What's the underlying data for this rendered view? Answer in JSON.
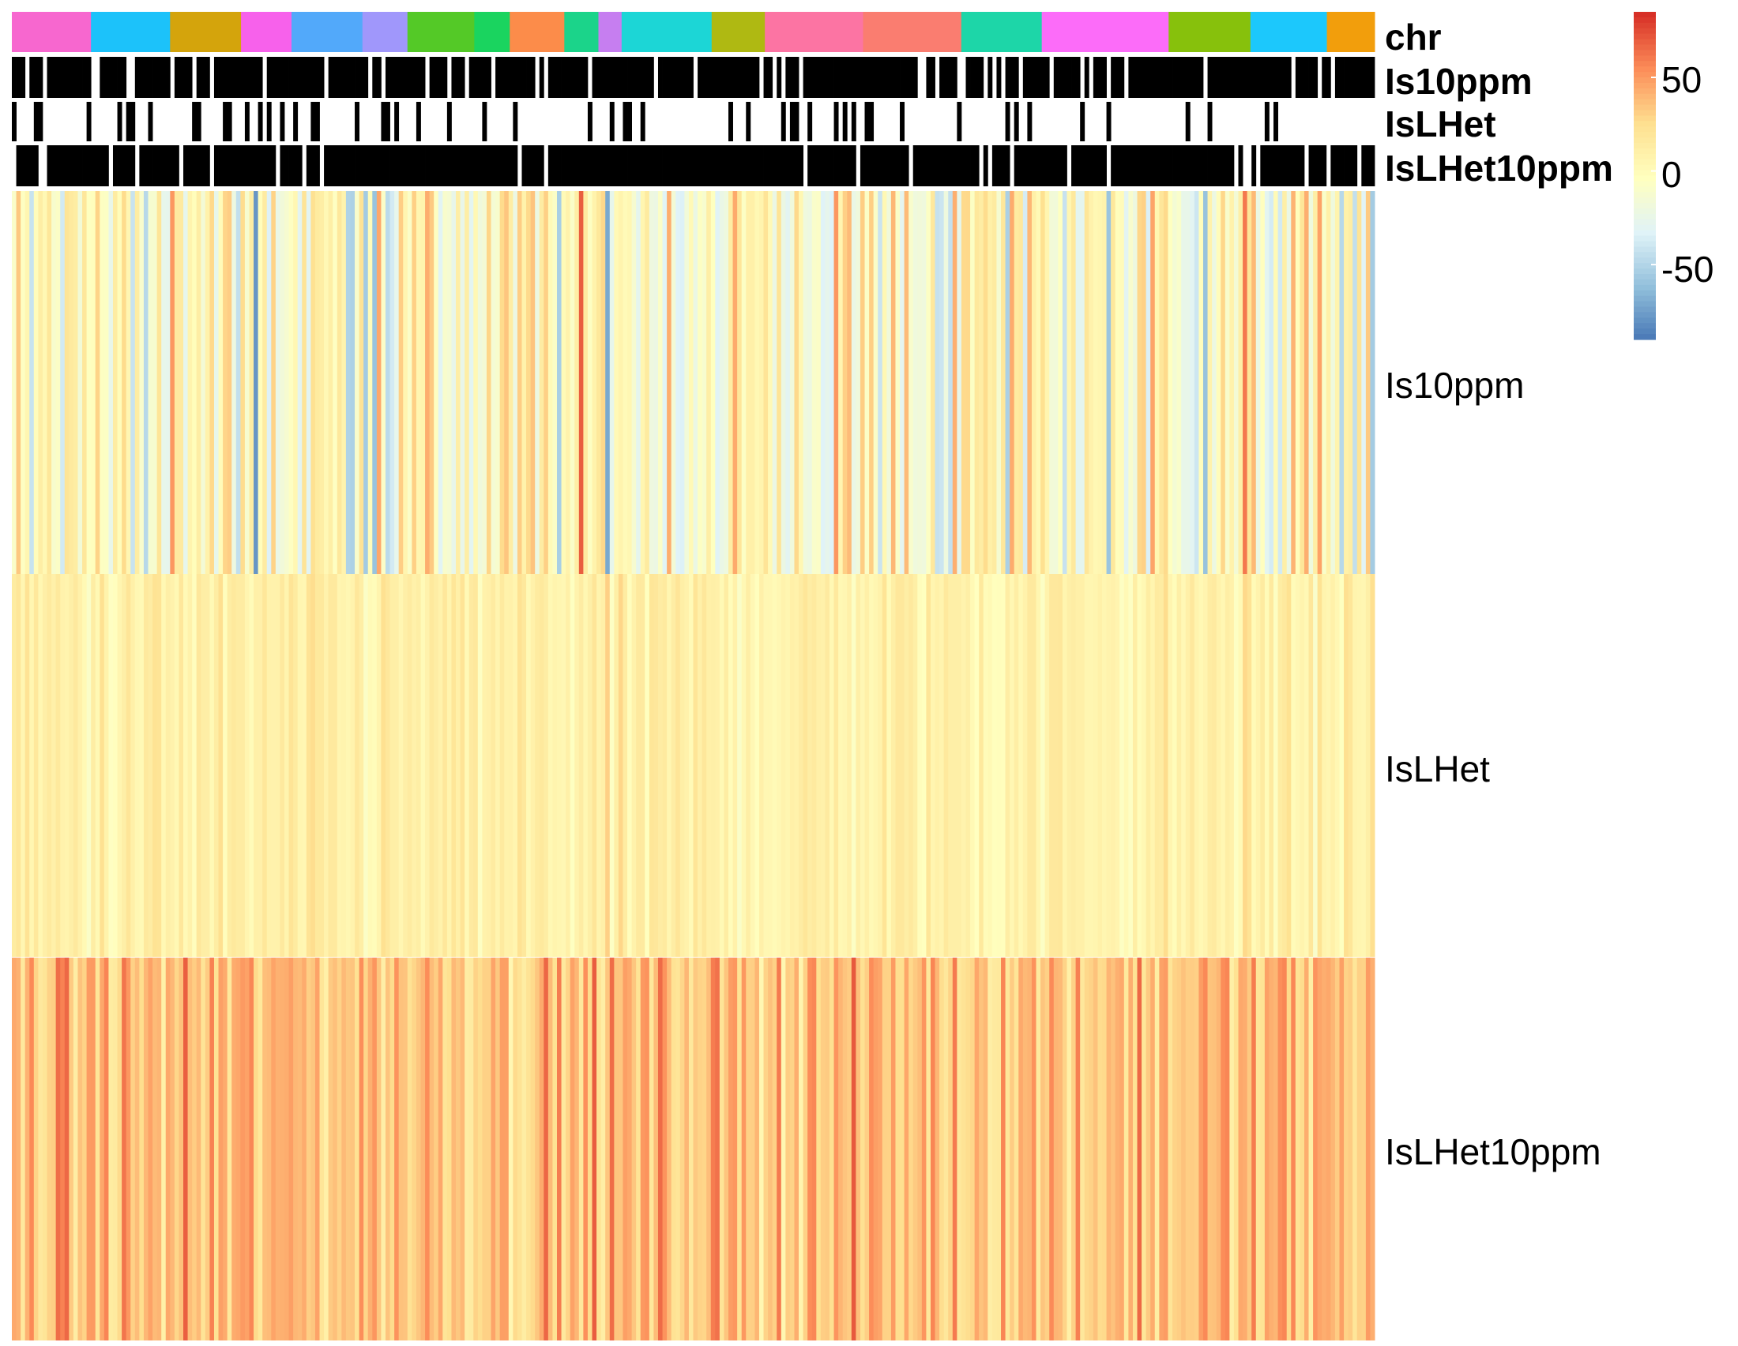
{
  "chart_data": {
    "type": "heatmap",
    "rows": [
      "Is10ppm",
      "IsLHet",
      "IsLHet10ppm"
    ],
    "columns_count": 310,
    "annotations": {
      "tracks": [
        "chr",
        "Is10ppm",
        "IsLHet",
        "IsLHet10ppm"
      ],
      "chr_segments": [
        {
          "color": "#F767CF",
          "span": 0.058
        },
        {
          "color": "#1CC2FA",
          "span": 0.058
        },
        {
          "color": "#D4A40C",
          "span": 0.052
        },
        {
          "color": "#F761EB",
          "span": 0.037
        },
        {
          "color": "#52A9FA",
          "span": 0.052
        },
        {
          "color": "#A097FB",
          "span": 0.033
        },
        {
          "color": "#54C927",
          "span": 0.049
        },
        {
          "color": "#1AD45F",
          "span": 0.026
        },
        {
          "color": "#FC8C4A",
          "span": 0.04
        },
        {
          "color": "#1BD48A",
          "span": 0.025
        },
        {
          "color": "#C67EF0",
          "span": 0.017
        },
        {
          "color": "#1CD6D6",
          "span": 0.066
        },
        {
          "color": "#AFB912",
          "span": 0.039
        },
        {
          "color": "#FC74A3",
          "span": 0.072
        },
        {
          "color": "#FA7D70",
          "span": 0.072
        },
        {
          "color": "#1DD6A8",
          "span": 0.059
        },
        {
          "color": "#FC6CF9",
          "span": 0.093
        },
        {
          "color": "#87C10C",
          "span": 0.06
        },
        {
          "color": "#1CC8FC",
          "span": 0.056
        },
        {
          "color": "#F29E0C",
          "span": 0.035
        }
      ],
      "binary_colors": {
        "true": "#000000",
        "false": "#FFFFFF"
      },
      "binary_density": {
        "Is10ppm": 0.84,
        "IsLHet": 0.16,
        "IsLHet10ppm": 0.9
      }
    },
    "colorbar": {
      "min": -90,
      "max": 85,
      "ticks": [
        -50,
        0,
        50
      ],
      "tick_labels": [
        "-50",
        "0",
        "50"
      ],
      "colors": [
        "#4575B4",
        "#91BFDB",
        "#E0F3F8",
        "#FFFFBF",
        "#FEE090",
        "#FC8D59",
        "#D73027"
      ]
    },
    "row_value_profiles": {
      "Is10ppm": {
        "mean": 0,
        "spread": 45
      },
      "IsLHet": {
        "mean": 10,
        "spread": 14
      },
      "IsLHet10ppm": {
        "mean": 38,
        "spread": 22
      }
    }
  }
}
